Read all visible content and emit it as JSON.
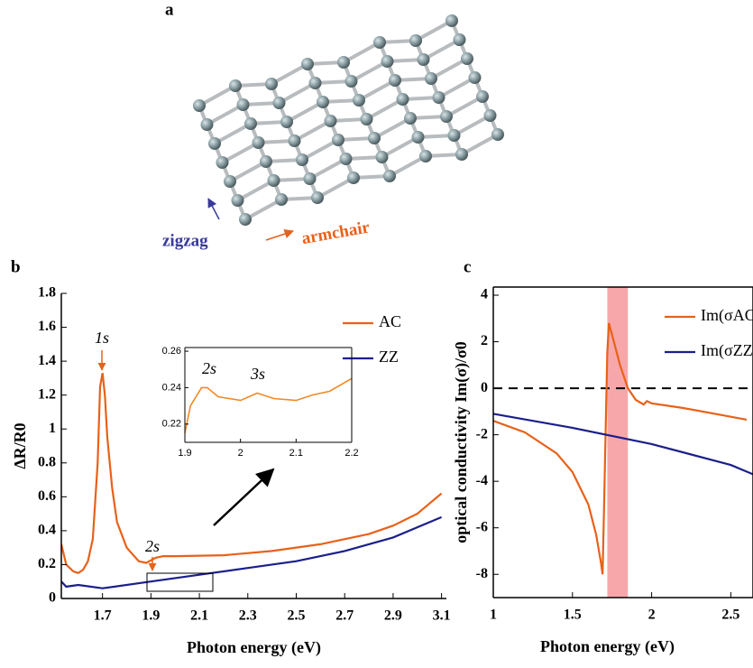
{
  "structure": {
    "panel_labels": [
      "a",
      "b",
      "c"
    ],
    "zigzag": "zigzag",
    "armchair": "armchair"
  },
  "chart_data": [
    {
      "type": "line",
      "xlabel": "Photon energy (eV)",
      "ylabel": "ΔR/R0",
      "xlim": [
        1.53,
        3.12
      ],
      "ylim": [
        0,
        1.8
      ],
      "xticks": [
        1.7,
        1.9,
        2.1,
        2.3,
        2.5,
        2.7,
        2.9,
        3.1
      ],
      "yticks": [
        0,
        0.2,
        0.4,
        0.6,
        0.8,
        1,
        1.2,
        1.4,
        1.6,
        1.8
      ],
      "legend": "upper right",
      "annotations": [
        "1s",
        "2s"
      ],
      "series": [
        {
          "name": "AC",
          "color": "#e8611a",
          "x": [
            1.53,
            1.55,
            1.58,
            1.6,
            1.62,
            1.64,
            1.66,
            1.68,
            1.69,
            1.7,
            1.71,
            1.72,
            1.74,
            1.76,
            1.8,
            1.85,
            1.88,
            1.92,
            1.95,
            2.0,
            2.2,
            2.4,
            2.6,
            2.8,
            2.9,
            3.0,
            3.05,
            3.1
          ],
          "values": [
            0.32,
            0.2,
            0.16,
            0.15,
            0.17,
            0.22,
            0.35,
            0.8,
            1.25,
            1.33,
            1.2,
            0.95,
            0.65,
            0.45,
            0.3,
            0.22,
            0.21,
            0.24,
            0.25,
            0.25,
            0.255,
            0.28,
            0.32,
            0.38,
            0.43,
            0.5,
            0.56,
            0.62
          ]
        },
        {
          "name": "ZZ",
          "color": "#1a1f8a",
          "x": [
            1.53,
            1.55,
            1.6,
            1.7,
            1.9,
            2.1,
            2.3,
            2.5,
            2.7,
            2.9,
            3.0,
            3.1
          ],
          "values": [
            0.1,
            0.07,
            0.08,
            0.06,
            0.1,
            0.14,
            0.18,
            0.22,
            0.28,
            0.36,
            0.42,
            0.48
          ]
        }
      ]
    },
    {
      "type": "line",
      "xlim": [
        1.9,
        2.2
      ],
      "ylim": [
        0.21,
        0.262
      ],
      "xticks": [
        1.9,
        2,
        2.1,
        2.2
      ],
      "yticks": [
        0.22,
        0.24,
        0.26
      ],
      "annotations": [
        "2s",
        "3s"
      ],
      "series": [
        {
          "color": "#f08a24",
          "x": [
            1.9,
            1.91,
            1.93,
            1.94,
            1.96,
            2.0,
            2.03,
            2.06,
            2.1,
            2.13,
            2.16,
            2.2
          ],
          "values": [
            0.215,
            0.23,
            0.24,
            0.24,
            0.235,
            0.233,
            0.237,
            0.234,
            0.233,
            0.236,
            0.238,
            0.245
          ]
        }
      ]
    },
    {
      "type": "line",
      "xlabel": "Photon energy (eV)",
      "ylabel": "optical conductivity Im(σ)/σ0",
      "xlim": [
        1,
        2.64
      ],
      "ylim": [
        -9,
        4.35
      ],
      "xticks": [
        1,
        1.5,
        2,
        2.5
      ],
      "yticks": [
        -8,
        -6,
        -4,
        -2,
        0,
        2,
        4
      ],
      "hline": 0,
      "highlight_x": [
        1.72,
        1.85
      ],
      "legend": "upper right",
      "series": [
        {
          "name": "Im(σAC)",
          "color": "#e8611a",
          "x": [
            1,
            1.2,
            1.4,
            1.5,
            1.6,
            1.65,
            1.68,
            1.69,
            1.7,
            1.72,
            1.73,
            1.75,
            1.8,
            1.85,
            1.9,
            1.95,
            1.97,
            2.0,
            2.2,
            2.4,
            2.6
          ],
          "values": [
            -1.4,
            -1.9,
            -2.8,
            -3.6,
            -5,
            -6.3,
            -7.5,
            -8,
            -5,
            1.5,
            2.8,
            2.3,
            1,
            0,
            -0.5,
            -0.7,
            -0.55,
            -0.65,
            -0.85,
            -1.1,
            -1.35
          ]
        },
        {
          "name": "Im(σZZ)",
          "color": "#1a1f8a",
          "x": [
            1,
            1.5,
            2,
            2.5,
            2.64
          ],
          "values": [
            -1.1,
            -1.7,
            -2.4,
            -3.3,
            -3.7
          ]
        }
      ]
    }
  ]
}
